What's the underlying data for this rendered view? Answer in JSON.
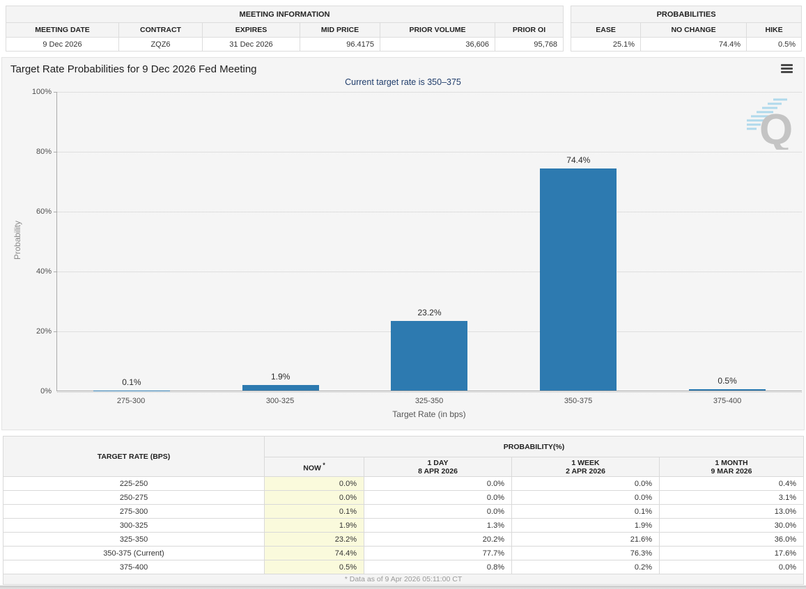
{
  "meeting_info": {
    "caption": "MEETING INFORMATION",
    "headers": [
      "MEETING DATE",
      "CONTRACT",
      "EXPIRES",
      "MID PRICE",
      "PRIOR VOLUME",
      "PRIOR OI"
    ],
    "row": [
      "9 Dec 2026",
      "ZQZ6",
      "31 Dec 2026",
      "96.4175",
      "36,606",
      "95,768"
    ]
  },
  "probabilities_summary": {
    "caption": "PROBABILITIES",
    "headers": [
      "EASE",
      "NO CHANGE",
      "HIKE"
    ],
    "row": [
      "25.1%",
      "74.4%",
      "0.5%"
    ]
  },
  "chart": {
    "title": "Target Rate Probabilities for 9 Dec 2026 Fed Meeting",
    "subtitle": "Current target rate is 350–375",
    "ylabel": "Probability",
    "xlabel": "Target Rate (in bps)",
    "yticks": [
      "100%",
      "80%",
      "60%",
      "40%",
      "20%",
      "0%"
    ],
    "watermark_letter": "Q"
  },
  "chart_data": {
    "type": "bar",
    "categories": [
      "275-300",
      "300-325",
      "325-350",
      "350-375",
      "375-400"
    ],
    "values": [
      0.1,
      1.9,
      23.2,
      74.4,
      0.5
    ],
    "labels": [
      "0.1%",
      "1.9%",
      "23.2%",
      "74.4%",
      "0.5%"
    ],
    "title": "Target Rate Probabilities for 9 Dec 2026 Fed Meeting",
    "xlabel": "Target Rate (in bps)",
    "ylabel": "Probability",
    "ylim": [
      0,
      100
    ],
    "grid": "dotted horizontal at 20% steps",
    "bar_color": "#2d7ab0",
    "background": "#f5f5f5"
  },
  "prob_table": {
    "col1_header": "TARGET RATE (BPS)",
    "group_header": "PROBABILITY(%)",
    "columns": [
      {
        "label": "NOW",
        "sup": " *",
        "sub": ""
      },
      {
        "label": "1 DAY",
        "sub": "8 APR 2026"
      },
      {
        "label": "1 WEEK",
        "sub": "2 APR 2026"
      },
      {
        "label": "1 MONTH",
        "sub": "9 MAR 2026"
      }
    ],
    "rows": [
      {
        "rate": "225-250",
        "now": "0.0%",
        "d1": "0.0%",
        "w1": "0.0%",
        "m1": "0.4%"
      },
      {
        "rate": "250-275",
        "now": "0.0%",
        "d1": "0.0%",
        "w1": "0.0%",
        "m1": "3.1%"
      },
      {
        "rate": "275-300",
        "now": "0.1%",
        "d1": "0.0%",
        "w1": "0.1%",
        "m1": "13.0%"
      },
      {
        "rate": "300-325",
        "now": "1.9%",
        "d1": "1.3%",
        "w1": "1.9%",
        "m1": "30.0%"
      },
      {
        "rate": "325-350",
        "now": "23.2%",
        "d1": "20.2%",
        "w1": "21.6%",
        "m1": "36.0%"
      },
      {
        "rate": "350-375 (Current)",
        "now": "74.4%",
        "d1": "77.7%",
        "w1": "76.3%",
        "m1": "17.6%"
      },
      {
        "rate": "375-400",
        "now": "0.5%",
        "d1": "0.8%",
        "w1": "0.2%",
        "m1": "0.0%"
      }
    ],
    "footnote": "* Data as of 9 Apr 2026 05:11:00 CT",
    "now_highlight_color": "#fafadc"
  }
}
